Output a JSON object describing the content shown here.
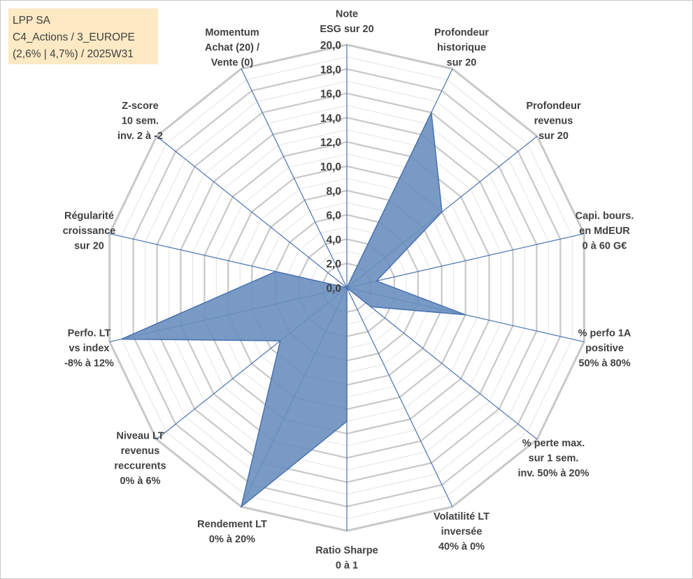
{
  "infobox": {
    "line1": "LPP SA",
    "line2": "C4_Actions / 3_EUROPE",
    "line3": "(2,6% | 4,7%) / 2025W31",
    "background": "#fde9c4"
  },
  "chart_data": {
    "type": "radar",
    "rmin": 0,
    "rmax": 20,
    "grid": true,
    "tick_labels": [
      "0,0",
      "2,0",
      "4,0",
      "6,0",
      "8,0",
      "10,0",
      "12,0",
      "14,0",
      "16,0",
      "18,0",
      "20,0"
    ],
    "fill_color": "#6a8fbf",
    "line_color": "#4a72b0",
    "grid_color": "#c8c8c8",
    "axes": [
      {
        "label": [
          "Note",
          "ESG sur 20"
        ],
        "value": 0
      },
      {
        "label": [
          "Profondeur",
          "historique",
          "sur 20"
        ],
        "value": 16
      },
      {
        "label": [
          "Profondeur",
          "revenus",
          "sur 20"
        ],
        "value": 10
      },
      {
        "label": [
          "Capi. bours.",
          "en MdEUR",
          "0 à 60 G€"
        ],
        "value": 2.5
      },
      {
        "label": [
          "% perfo 1A",
          "positive",
          "50% à 80%"
        ],
        "value": 10
      },
      {
        "label": [
          "% perte max.",
          "sur 1 sem.",
          "inv. 50% à 20%"
        ],
        "value": 2.5
      },
      {
        "label": [
          "Volatilité LT",
          "inversée",
          "40% à 0%"
        ],
        "value": 0
      },
      {
        "label": [
          "Ratio Sharpe",
          "0 à 1"
        ],
        "value": 11
      },
      {
        "label": [
          "Rendement LT",
          "0% à 20%"
        ],
        "value": 20
      },
      {
        "label": [
          "Niveau LT",
          "revenus",
          "reccurents",
          "0% à 6%"
        ],
        "value": 7
      },
      {
        "label": [
          "Perfo. LT",
          "vs index",
          "-8% à 12%"
        ],
        "value": 19
      },
      {
        "label": [
          "Régularité",
          "croissance",
          "sur 20"
        ],
        "value": 6
      },
      {
        "label": [
          "Z-score",
          "10 sem.",
          "inv. 2 à -2"
        ],
        "value": 0
      },
      {
        "label": [
          "Momentum",
          "Achat (20) /",
          "Vente (0)"
        ],
        "value": 0
      }
    ]
  }
}
